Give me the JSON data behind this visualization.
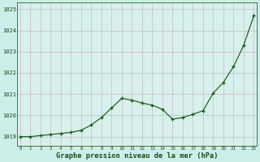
{
  "x": [
    0,
    1,
    2,
    3,
    4,
    5,
    6,
    7,
    8,
    9,
    10,
    11,
    12,
    13,
    14,
    15,
    16,
    17,
    18,
    19,
    20,
    21,
    22,
    23
  ],
  "y": [
    1019.0,
    1019.0,
    1019.05,
    1019.1,
    1019.15,
    1019.2,
    1019.3,
    1019.55,
    1019.9,
    1020.35,
    1020.8,
    1020.72,
    1020.58,
    1020.48,
    1020.28,
    1019.82,
    1019.9,
    1020.05,
    1020.22,
    1021.05,
    1021.55,
    1022.3,
    1023.3,
    1024.7
  ],
  "background_color": "#cceee8",
  "plot_bg_color": "#d8f0ec",
  "line_color": "#1a5c1a",
  "marker_color": "#1a5c1a",
  "grid_color": "#c8b8c8",
  "title": "Graphe pression niveau de la mer (hPa)",
  "ylabel_ticks": [
    1019,
    1020,
    1021,
    1022,
    1023,
    1024,
    1025
  ],
  "xlabel_ticks": [
    0,
    1,
    2,
    3,
    4,
    5,
    6,
    7,
    8,
    9,
    10,
    11,
    12,
    13,
    14,
    15,
    16,
    17,
    18,
    19,
    20,
    21,
    22,
    23
  ],
  "ylim": [
    1018.55,
    1025.3
  ],
  "xlim": [
    -0.3,
    23.3
  ]
}
